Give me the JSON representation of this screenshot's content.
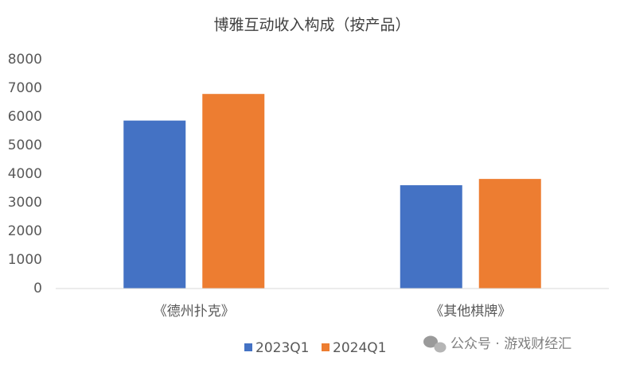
{
  "chart_data": {
    "type": "bar",
    "title": "博雅互动收入构成（按产品）",
    "categories": [
      "《德州扑克》",
      "《其他棋牌》"
    ],
    "series": [
      {
        "name": "2023Q1",
        "color": "#4472c4",
        "values": [
          5870,
          3610
        ]
      },
      {
        "name": "2024Q1",
        "color": "#ed7d31",
        "values": [
          6800,
          3830
        ]
      }
    ],
    "ylim": [
      0,
      8000
    ],
    "yticks": [
      0,
      1000,
      2000,
      3000,
      4000,
      5000,
      6000,
      7000,
      8000
    ],
    "grid": false,
    "legend": "bottom"
  },
  "watermark": "公众号 · 游戏财经汇"
}
